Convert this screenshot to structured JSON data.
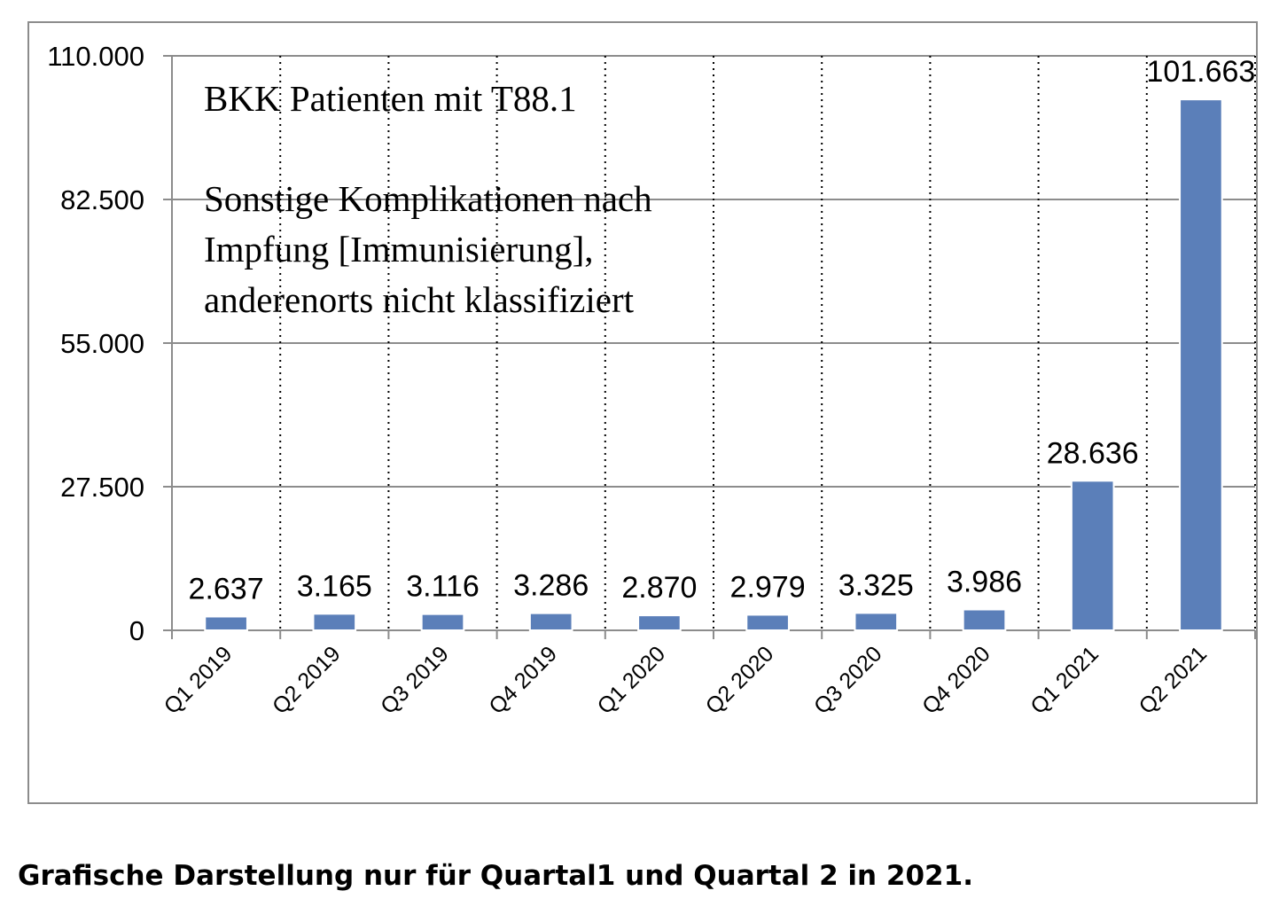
{
  "chart_data": {
    "type": "bar",
    "title_lines": [
      "BKK Patienten mit T88.1",
      "",
      "Sonstige Komplikationen nach",
      "Impfung [Immunisierung],",
      "anderenorts nicht klassifiziert"
    ],
    "categories": [
      "Q1 2019",
      "Q2 2019",
      "Q3 2019",
      "Q4 2019",
      "Q1 2020",
      "Q2 2020",
      "Q3 2020",
      "Q4 2020",
      "Q1 2021",
      "Q2 2021"
    ],
    "values": [
      2637,
      3165,
      3116,
      3286,
      2870,
      2979,
      3325,
      3986,
      28636,
      101663
    ],
    "value_labels": [
      "2.637",
      "3.165",
      "3.116",
      "3.286",
      "2.870",
      "2.979",
      "3.325",
      "3.986",
      "28.636",
      "101.663"
    ],
    "y_ticks": [
      0,
      27500,
      55000,
      82500,
      110000
    ],
    "y_tick_labels": [
      "0",
      "27.500",
      "55.000",
      "82.500",
      "110.000"
    ],
    "ylim": [
      0,
      110000
    ],
    "grid": true,
    "bar_color": "#5b7fb9",
    "xlabel": "",
    "ylabel": ""
  },
  "caption": "Grafische Darstellung nur für Quartal1 und Quartal 2 in 2021."
}
